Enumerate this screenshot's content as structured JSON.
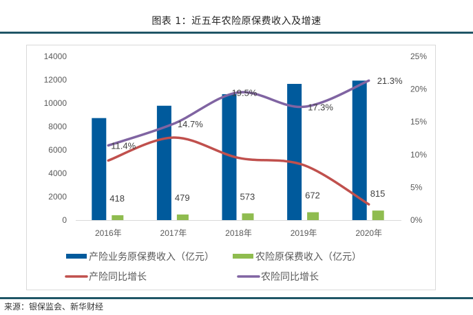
{
  "header": {
    "title": "图表 1：近五年农险原保费收入及增速"
  },
  "footer": {
    "source": "来源：银保监会、新华财经"
  },
  "colors": {
    "property_premium": "#005a9c",
    "agri_premium": "#8fbc4f",
    "property_growth": "#c0504d",
    "agri_growth": "#8064a2",
    "rule": "#1f5566"
  },
  "chart_data": {
    "type": "bar",
    "title": "图表 1：近五年农险原保费收入及增速",
    "categories": [
      "2016年",
      "2017年",
      "2018年",
      "2019年",
      "2020年"
    ],
    "xlabel": "",
    "ylabel": "",
    "ylim": [
      0,
      14000
    ],
    "yticks": [
      "0",
      "2000",
      "4000",
      "6000",
      "8000",
      "10000",
      "12000",
      "14000"
    ],
    "y2lim": [
      0,
      25
    ],
    "y2ticks": [
      "0%",
      "5%",
      "10%",
      "15%",
      "20%",
      "25%"
    ],
    "grid": false,
    "legend_position": "bottom",
    "series": [
      {
        "name": "产险业务原保费收入（亿元）",
        "type": "bar",
        "axis": "left",
        "values": [
          8725,
          9780,
          10770,
          11649,
          11929
        ],
        "labels": []
      },
      {
        "name": "农险原保费收入（亿元）",
        "type": "bar",
        "axis": "left",
        "values": [
          418,
          479,
          573,
          672,
          815
        ],
        "labels": [
          "418",
          "479",
          "573",
          "672",
          "815"
        ]
      },
      {
        "name": "产险同比增长",
        "type": "line",
        "axis": "right",
        "values": [
          9.1,
          12.6,
          9.5,
          8.4,
          2.4
        ],
        "labels": []
      },
      {
        "name": "农险同比增长",
        "type": "line",
        "axis": "right",
        "values": [
          11.4,
          14.7,
          19.5,
          17.3,
          21.3
        ],
        "labels": [
          "11.4%",
          "14.7%",
          "19.5%",
          "17.3%",
          "21.3%"
        ]
      }
    ]
  }
}
